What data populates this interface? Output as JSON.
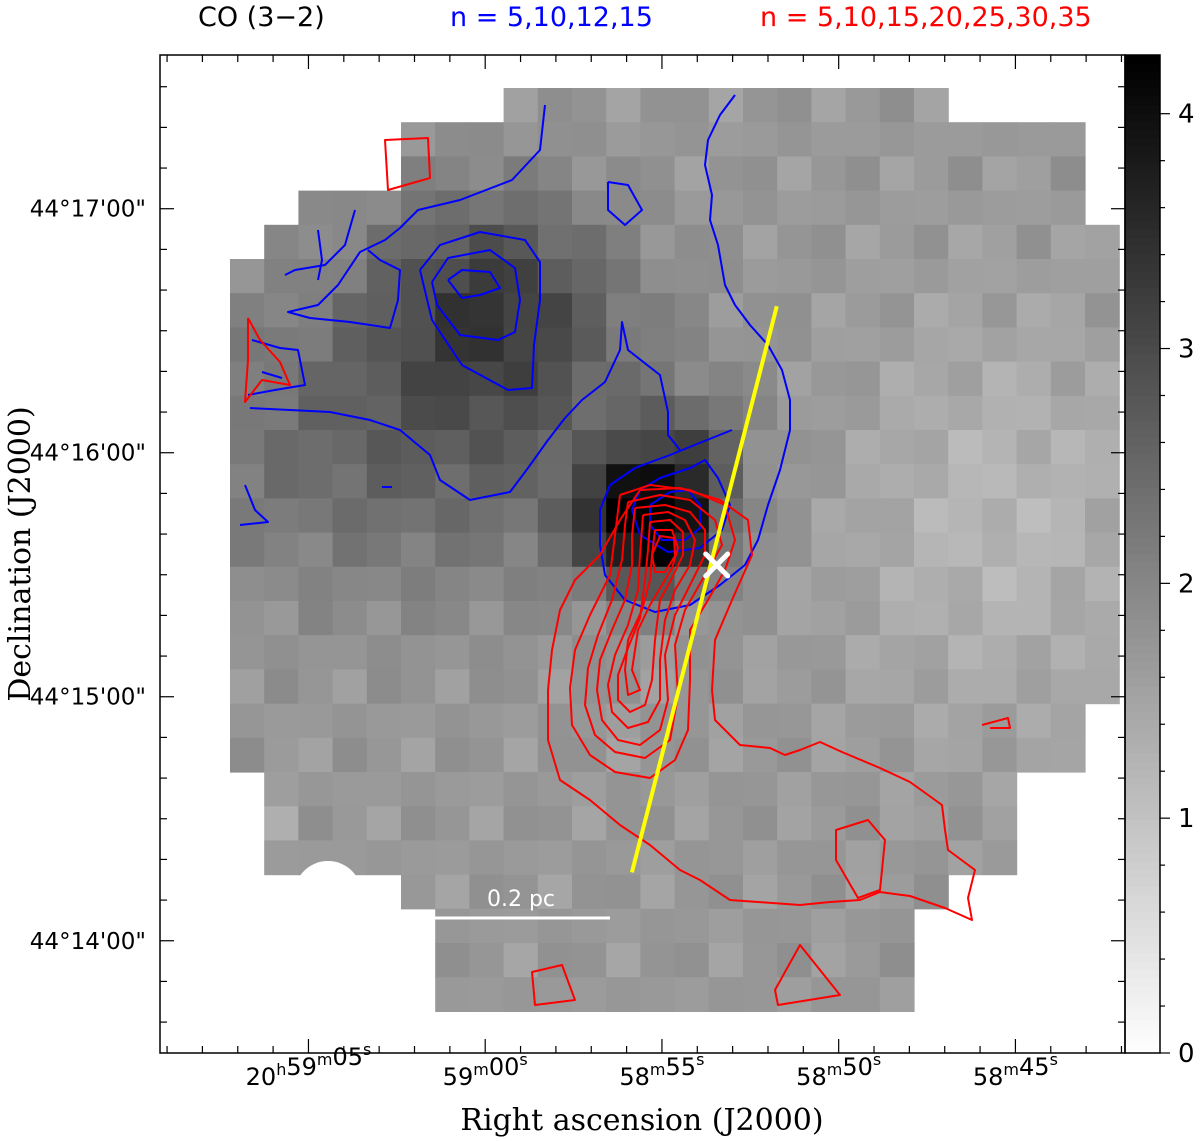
{
  "header": {
    "line": "CO (3−2)",
    "blue_levels": "n = 5,10,12,15",
    "red_levels": "n = 5,10,15,20,25,30,35"
  },
  "colors": {
    "blue_contour": "#0000ff",
    "red_contour": "#ff0000",
    "outflow_axis": "#ffff00",
    "source_marker": "#ffffff",
    "text_blue": "#0000ff",
    "text_red": "#ff0000"
  },
  "chart_data": {
    "type": "heatmap",
    "title": "CO (3−2)",
    "xlabel": "Right ascension (J2000)",
    "ylabel": "Declination (J2000)",
    "x_ticks": [
      {
        "label": "20h59m05s",
        "h": "20",
        "m": "59",
        "s": "05",
        "ra_s": 305.0
      },
      {
        "label": "59m00s",
        "m": "59",
        "s": "00",
        "ra_s": 300.0
      },
      {
        "label": "58m55s",
        "m": "58",
        "s": "55",
        "ra_s": 295.0
      },
      {
        "label": "58m50s",
        "m": "58",
        "s": "50",
        "ra_s": 290.0
      },
      {
        "label": "58m45s",
        "m": "58",
        "s": "45",
        "ra_s": 285.0
      }
    ],
    "y_ticks": [
      {
        "label": "44°17'00\"",
        "dec_arcmin": 17
      },
      {
        "label": "44°16'00\"",
        "dec_arcmin": 16
      },
      {
        "label": "44°15'00\"",
        "dec_arcmin": 15
      },
      {
        "label": "44°14'00\"",
        "dec_arcmin": 14
      }
    ],
    "xlim_ra_s": [
      281.9,
      309.2
    ],
    "ylim_dec_arcmin": [
      13.54,
      17.63
    ],
    "colorbar": {
      "range": [
        0,
        4.25
      ],
      "ticks": [
        "0",
        "1",
        "2",
        "3",
        "4"
      ],
      "cmap": "gray_reversed"
    },
    "scale_bar": {
      "label": "0.2 pc"
    },
    "source": {
      "ra_s": 293.45,
      "dec_arcmin": 15.54
    },
    "outflow_axis": {
      "start": {
        "ra_s": 295.85,
        "dec_arcmin": 14.28
      },
      "end": {
        "ra_s": 291.75,
        "dec_arcmin": 16.6
      }
    },
    "beam": "white filled circle, lower-left corner",
    "contours": [
      {
        "name": "blue",
        "levels": [
          5,
          10,
          12,
          15
        ]
      },
      {
        "name": "red",
        "levels": [
          5,
          10,
          15,
          20,
          25,
          30,
          35
        ]
      }
    ]
  }
}
